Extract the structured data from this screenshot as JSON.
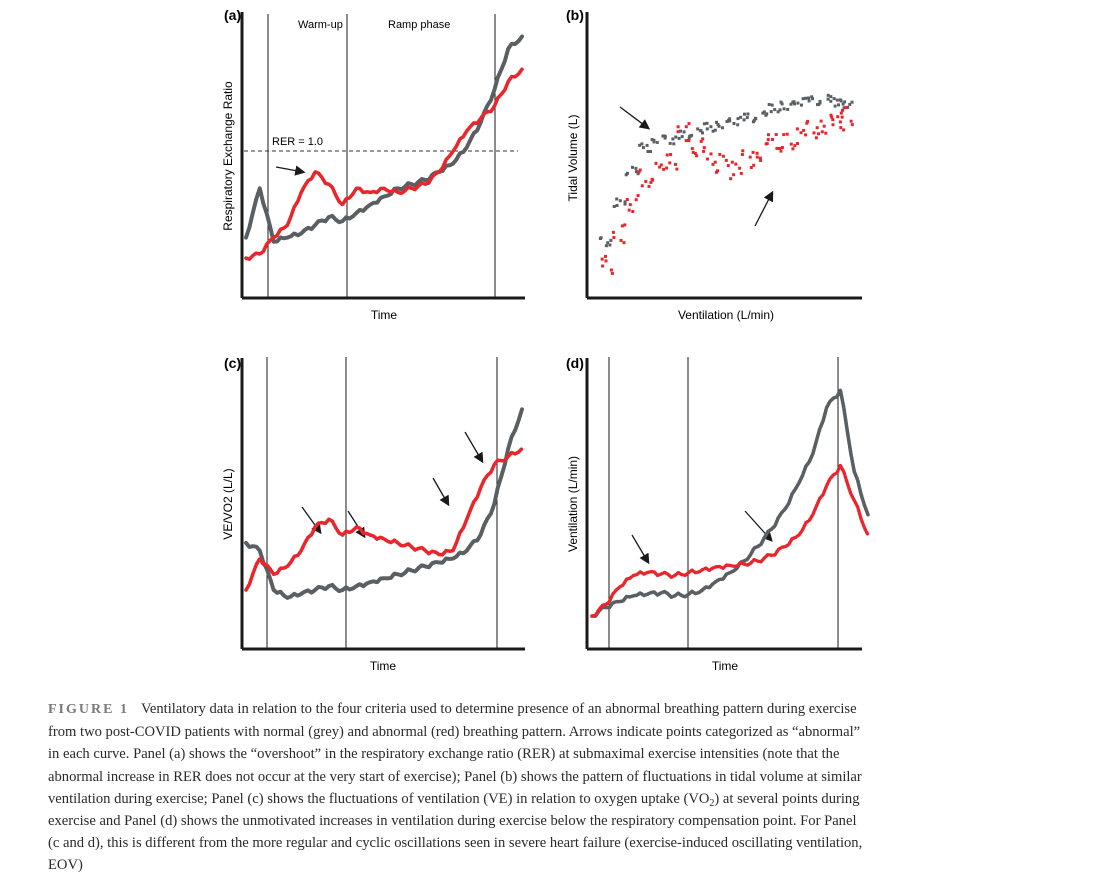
{
  "figure": {
    "panels": [
      {
        "id": "a",
        "label": "(a)",
        "xlabel": "Time",
        "ylabel": "Respiratory Exchange Ratio",
        "phase_labels": [
          "Warm-up",
          "Ramp phase"
        ],
        "reference_line_label": "RER = 1.0"
      },
      {
        "id": "b",
        "label": "(b)",
        "xlabel": "Ventilation (L/min)",
        "ylabel": "Tidal Volume (L)"
      },
      {
        "id": "c",
        "label": "(c)",
        "xlabel": "Time",
        "ylabel": "VE/VO2 (L/L)"
      },
      {
        "id": "d",
        "label": "(d)",
        "xlabel": "Time",
        "ylabel": "Ventilation (L/min)"
      }
    ],
    "colors": {
      "normal": "#5a5f63",
      "abnormal": "#e8262b",
      "axis": "#1a1a1a"
    },
    "chart_data": [
      {
        "type": "line",
        "panel": "a",
        "title": "",
        "xlabel": "Time",
        "ylabel": "Respiratory Exchange Ratio",
        "x": [
          0,
          5,
          10,
          15,
          20,
          25,
          30,
          35,
          40,
          45,
          50,
          55,
          60,
          65,
          70,
          75,
          80,
          85,
          90,
          95,
          100
        ],
        "series": [
          {
            "values": [
              0.84,
              0.96,
              0.83,
              0.84,
              0.85,
              0.87,
              0.89,
              0.88,
              0.9,
              0.92,
              0.94,
              0.96,
              0.97,
              0.98,
              1.0,
              1.02,
              1.06,
              1.12,
              1.2,
              1.3,
              1.33
            ]
          },
          {
            "values": [
              0.79,
              0.8,
              0.84,
              0.87,
              0.95,
              1.0,
              0.97,
              0.92,
              0.96,
              0.95,
              0.96,
              0.95,
              0.96,
              0.97,
              1.0,
              1.05,
              1.1,
              1.13,
              1.16,
              1.22,
              1.25
            ]
          }
        ],
        "reference_line": 1.0,
        "phase_boundaries": [
          0.09,
          0.4,
          0.92
        ]
      },
      {
        "type": "scatter",
        "panel": "b",
        "title": "",
        "xlabel": "Ventilation (L/min)",
        "ylabel": "Tidal Volume (L)",
        "series": [
          {
            "x": [
              5,
              10,
              15,
              20,
              25,
              30,
              35,
              40,
              45,
              50,
              55,
              60,
              65,
              70,
              75,
              80,
              85,
              90,
              95,
              98
            ],
            "y": [
              0.85,
              1.1,
              1.3,
              1.45,
              1.5,
              1.5,
              1.53,
              1.55,
              1.58,
              1.6,
              1.62,
              1.64,
              1.66,
              1.7,
              1.72,
              1.74,
              1.75,
              1.76,
              1.74,
              1.73
            ]
          },
          {
            "x": [
              5,
              10,
              15,
              20,
              25,
              30,
              35,
              40,
              45,
              50,
              55,
              60,
              65,
              70,
              75,
              80,
              85,
              90,
              95,
              98
            ],
            "y": [
              0.7,
              0.9,
              1.1,
              1.25,
              1.3,
              1.35,
              1.55,
              1.45,
              1.4,
              1.35,
              1.3,
              1.38,
              1.42,
              1.5,
              1.48,
              1.52,
              1.56,
              1.6,
              1.62,
              1.65
            ]
          }
        ]
      },
      {
        "type": "line",
        "panel": "c",
        "title": "",
        "xlabel": "Time",
        "ylabel": "VE/VO2 (L/L)",
        "x": [
          0,
          5,
          10,
          15,
          20,
          25,
          30,
          35,
          40,
          45,
          50,
          55,
          60,
          65,
          70,
          75,
          80,
          85,
          90,
          95,
          100
        ],
        "series": [
          {
            "values": [
              28,
              27,
              22,
              21,
              21.5,
              22,
              22.5,
              22,
              22.5,
              23,
              23.5,
              24,
              24.5,
              25,
              25.5,
              26,
              27,
              29,
              33,
              40,
              45
            ]
          },
          {
            "values": [
              22,
              26,
              24,
              25,
              27,
              30,
              31,
              29,
              30,
              29,
              28.5,
              28,
              27.5,
              27,
              26.5,
              27,
              31,
              35,
              38,
              39,
              40
            ]
          }
        ],
        "phase_boundaries": [
          0.08,
          0.38,
          0.91
        ]
      },
      {
        "type": "line",
        "panel": "d",
        "title": "",
        "xlabel": "Time",
        "ylabel": "Ventilation (L/min)",
        "x": [
          0,
          5,
          10,
          15,
          20,
          25,
          30,
          35,
          40,
          45,
          50,
          55,
          60,
          65,
          70,
          75,
          80,
          85,
          90,
          95,
          100
        ],
        "series": [
          {
            "values": [
              10,
              13,
              15,
              17,
              17.5,
              18,
              17,
              17.5,
              19,
              22,
              25,
              29,
              34,
              40,
              47,
              56,
              66,
              82,
              88,
              60,
              45
            ]
          },
          {
            "values": [
              10,
              14,
              20,
              24,
              25,
              24.5,
              24,
              25,
              26,
              27,
              27.5,
              28,
              29,
              31,
              34,
              38,
              45,
              55,
              62,
              50,
              38
            ]
          }
        ],
        "phase_boundaries": [
          0.06,
          0.35,
          0.88
        ]
      }
    ]
  },
  "caption": {
    "label": "FIGURE 1",
    "lines": [
      "Ventilatory data in relation to the four criteria used to determine presence of an abnormal breathing pattern during exercise",
      "from two post-COVID patients with normal (grey) and abnormal (red) breathing pattern. Arrows indicate points categorized as “abnormal”",
      "in each curve. Panel (a) shows the “overshoot” in the respiratory exchange ratio (RER) at submaximal exercise intensities (note that the",
      "abnormal increase in RER does not occur at the very start of exercise); Panel (b) shows the pattern of fluctuations in tidal volume at similar",
      "ventilation during exercise; Panel (c) shows the fluctuations of ventilation (VE) in relation to oxygen uptake (VO",
      "exercise and Panel (d) shows the unmotivated increases in ventilation during exercise below the respiratory compensation point. For Panel",
      "(c and d), this is different from the more regular and cyclic oscillations seen in severe heart failure (exercise-induced oscillating ventilation,",
      "EOV)"
    ],
    "line5_sub": "2",
    "line5_tail": ") at several points during"
  }
}
